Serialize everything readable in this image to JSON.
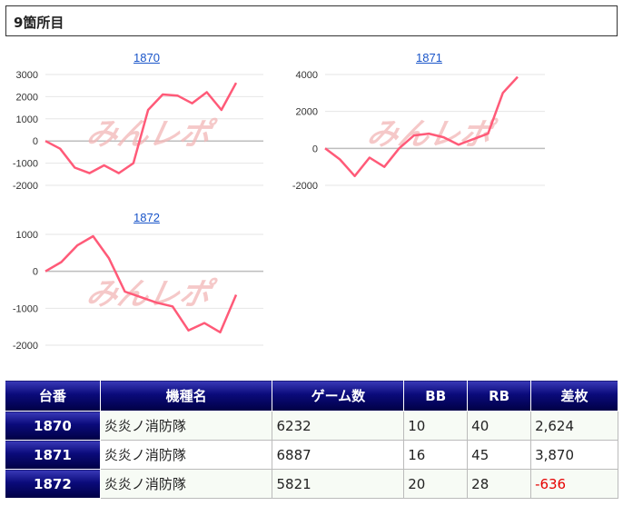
{
  "header": {
    "title": "9箇所目"
  },
  "colors": {
    "line": "#ff5a78",
    "header_bg": "#0a0a7a",
    "negative": "#e60000",
    "link": "#1a55c9"
  },
  "watermark": "みんレポ",
  "charts": [
    {
      "label": "1870"
    },
    {
      "label": "1871"
    },
    {
      "label": "1872"
    }
  ],
  "chart_data": [
    {
      "type": "line",
      "title": "1870",
      "y_ticks": [
        "3000",
        "2000",
        "1000",
        "0",
        "-1000",
        "-2000"
      ],
      "ylim": [
        -2000,
        3000
      ],
      "values": [
        0,
        -350,
        -1200,
        -1450,
        -1100,
        -1450,
        -1000,
        1400,
        2100,
        2050,
        1700,
        2200,
        1400,
        2624
      ]
    },
    {
      "type": "line",
      "title": "1871",
      "y_ticks": [
        "4000",
        "2000",
        "0",
        "-2000"
      ],
      "ylim": [
        -2000,
        4000
      ],
      "values": [
        0,
        -600,
        -1500,
        -500,
        -1000,
        0,
        700,
        800,
        600,
        200,
        500,
        800,
        3000,
        3870
      ]
    },
    {
      "type": "line",
      "title": "1872",
      "y_ticks": [
        "1000",
        "0",
        "-1000",
        "-2000"
      ],
      "ylim": [
        -2000,
        1000
      ],
      "values": [
        0,
        250,
        700,
        950,
        350,
        -550,
        -700,
        -850,
        -950,
        -1600,
        -1400,
        -1650,
        -636
      ]
    }
  ],
  "table": {
    "headers": [
      "台番",
      "機種名",
      "ゲーム数",
      "BB",
      "RB",
      "差枚"
    ],
    "rows": [
      {
        "number": "1870",
        "model": "炎炎ノ消防隊",
        "games": "6232",
        "bb": "10",
        "rb": "40",
        "diff": "2,624"
      },
      {
        "number": "1871",
        "model": "炎炎ノ消防隊",
        "games": "6887",
        "bb": "16",
        "rb": "45",
        "diff": "3,870"
      },
      {
        "number": "1872",
        "model": "炎炎ノ消防隊",
        "games": "5821",
        "bb": "20",
        "rb": "28",
        "diff": "-636"
      }
    ]
  }
}
